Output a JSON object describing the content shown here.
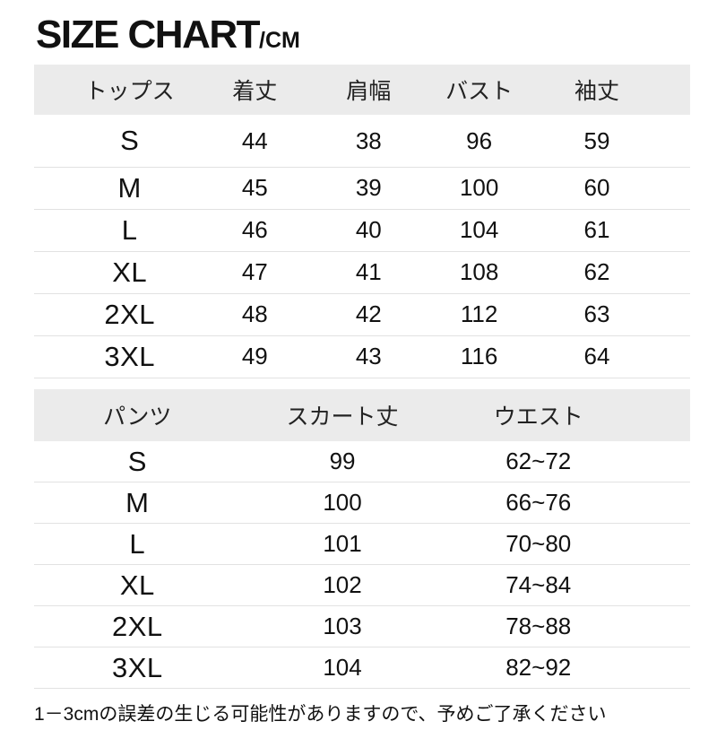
{
  "title": {
    "main": "SIZE CHART",
    "unit": "/CM"
  },
  "tables": {
    "tops": {
      "headers": [
        "トップス",
        "着丈",
        "肩幅",
        "バスト",
        "袖丈"
      ],
      "rows": [
        [
          "S",
          "44",
          "38",
          "96",
          "59"
        ],
        [
          "M",
          "45",
          "39",
          "100",
          "60"
        ],
        [
          "L",
          "46",
          "40",
          "104",
          "61"
        ],
        [
          "XL",
          "47",
          "41",
          "108",
          "62"
        ],
        [
          "2XL",
          "48",
          "42",
          "112",
          "63"
        ],
        [
          "3XL",
          "49",
          "43",
          "116",
          "64"
        ]
      ]
    },
    "bottoms": {
      "headers": [
        "パンツ",
        "スカート丈",
        "ウエスト"
      ],
      "rows": [
        [
          "S",
          "99",
          "62~72"
        ],
        [
          "M",
          "100",
          "66~76"
        ],
        [
          "L",
          "101",
          "70~80"
        ],
        [
          "XL",
          "102",
          "74~84"
        ],
        [
          "2XL",
          "103",
          "78~88"
        ],
        [
          "3XL",
          "104",
          "82~92"
        ]
      ]
    }
  },
  "footnote": "1－3cmの誤差の生じる可能性がありますので、予めご了承ください",
  "colors": {
    "header_bg": "#ebebeb",
    "row_divider": "#e2e2e2",
    "text": "#1a1a1a"
  }
}
